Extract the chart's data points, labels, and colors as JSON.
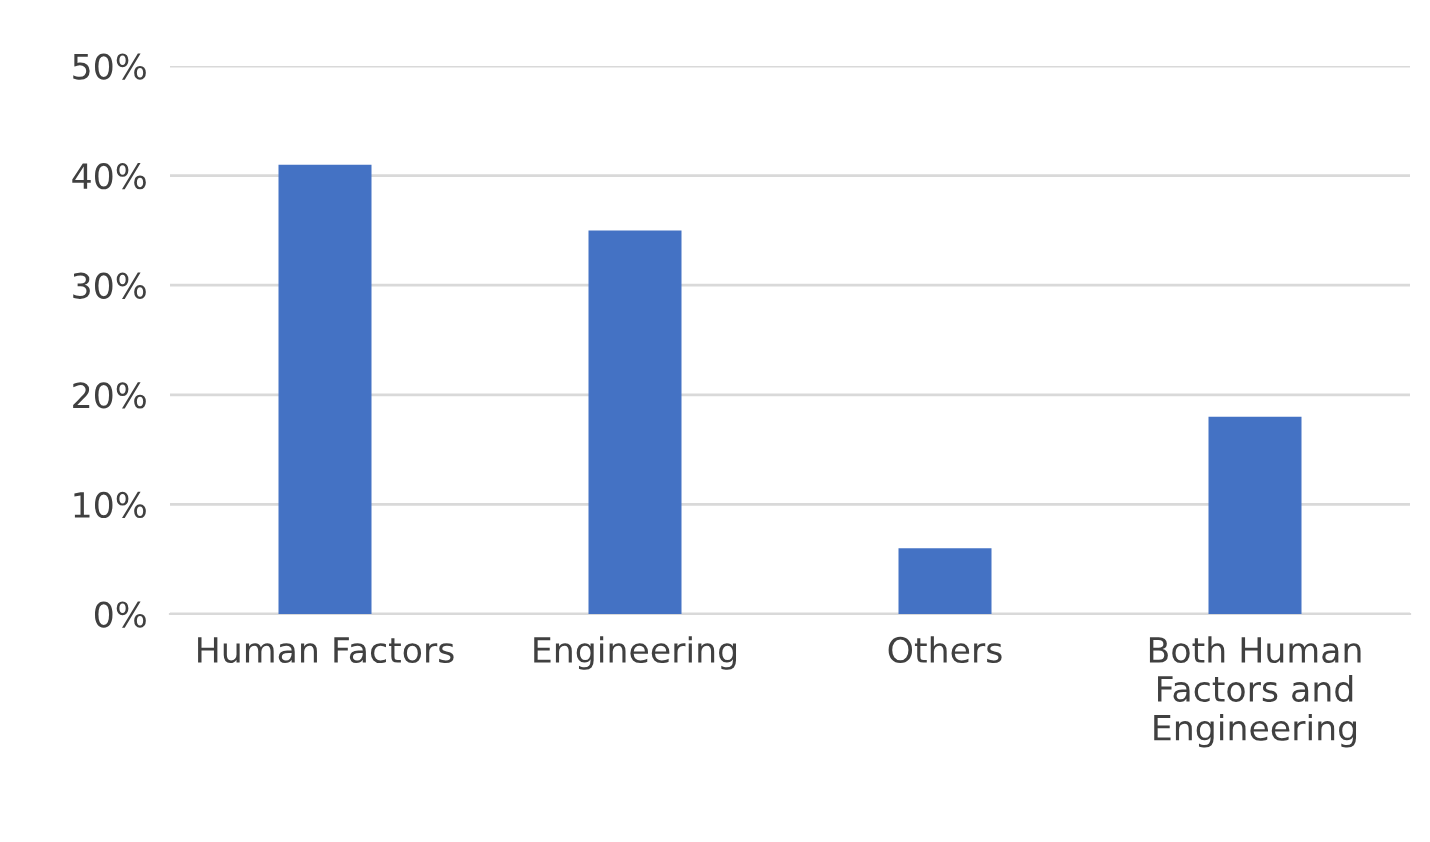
{
  "chart_data": {
    "type": "bar",
    "categories": [
      "Human Factors",
      "Engineering",
      "Others",
      "Both Human\nFactors and\nEngineering"
    ],
    "values": [
      41,
      35,
      6,
      18
    ],
    "color": "#4472c4",
    "ylim": [
      0,
      50
    ],
    "yticks": [
      {
        "value": 0,
        "label": "0%"
      },
      {
        "value": 10,
        "label": "10%"
      },
      {
        "value": 20,
        "label": "20%"
      },
      {
        "value": 30,
        "label": "30%"
      },
      {
        "value": 40,
        "label": "40%"
      },
      {
        "value": 50,
        "label": "50%"
      }
    ],
    "grid": "y",
    "legend": false
  }
}
